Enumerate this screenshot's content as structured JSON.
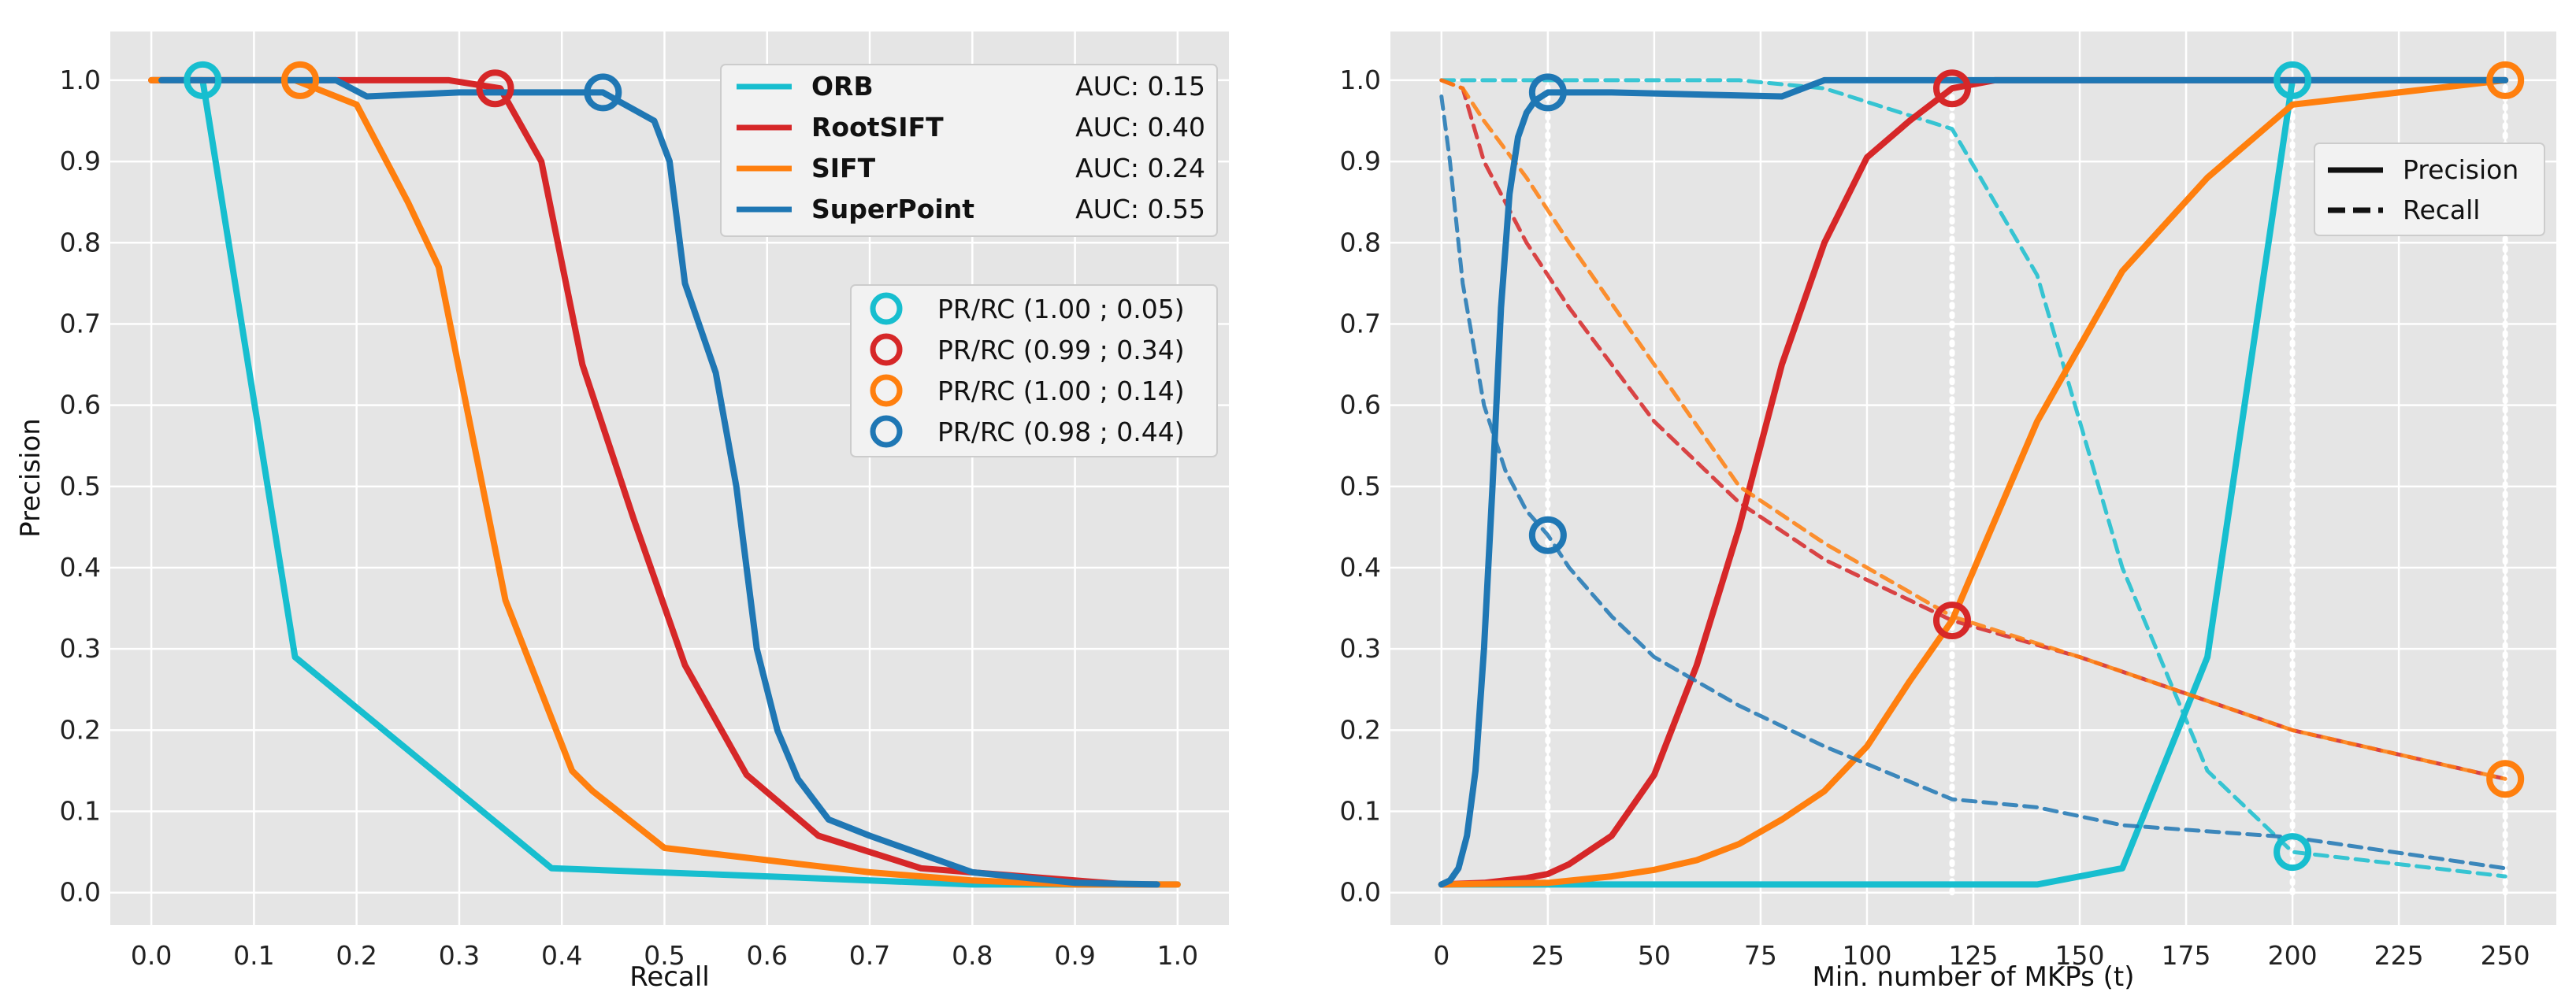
{
  "chart_data": [
    {
      "type": "line",
      "xlabel": "Recall",
      "ylabel": "Precision",
      "xlim": [
        -0.04,
        1.05
      ],
      "ylim": [
        -0.04,
        1.06
      ],
      "xticks": [
        0.0,
        0.1,
        0.2,
        0.3,
        0.4,
        0.5,
        0.6,
        0.7,
        0.8,
        0.9,
        1.0
      ],
      "yticks": [
        0.0,
        0.1,
        0.2,
        0.3,
        0.4,
        0.5,
        0.6,
        0.7,
        0.8,
        0.9,
        1.0
      ],
      "grid": true,
      "series": [
        {
          "name": "ORB",
          "auc_label": "AUC: 0.15",
          "color": "#17becf",
          "x": [
            0.0,
            0.05,
            0.14,
            0.39,
            0.6,
            0.8,
            1.0
          ],
          "y": [
            1.0,
            1.0,
            0.29,
            0.03,
            0.02,
            0.01,
            0.01
          ]
        },
        {
          "name": "RootSIFT",
          "auc_label": "AUC: 0.40",
          "color": "#d62728",
          "x": [
            0.0,
            0.29,
            0.34,
            0.38,
            0.42,
            0.47,
            0.52,
            0.58,
            0.65,
            0.75,
            0.85,
            0.95,
            0.98
          ],
          "y": [
            1.0,
            1.0,
            0.99,
            0.9,
            0.65,
            0.46,
            0.28,
            0.145,
            0.07,
            0.03,
            0.02,
            0.01,
            0.01
          ]
        },
        {
          "name": "SIFT",
          "auc_label": "AUC: 0.24",
          "color": "#ff7f0e",
          "x": [
            0.0,
            0.14,
            0.2,
            0.25,
            0.28,
            0.31,
            0.345,
            0.41,
            0.43,
            0.5,
            0.6,
            0.7,
            0.8,
            0.9,
            1.0
          ],
          "y": [
            1.0,
            1.0,
            0.97,
            0.85,
            0.77,
            0.58,
            0.36,
            0.15,
            0.125,
            0.055,
            0.04,
            0.025,
            0.015,
            0.01,
            0.01
          ]
        },
        {
          "name": "SuperPoint",
          "auc_label": "AUC: 0.55",
          "color": "#1f77b4",
          "x": [
            0.01,
            0.18,
            0.21,
            0.3,
            0.44,
            0.49,
            0.505,
            0.52,
            0.55,
            0.57,
            0.59,
            0.61,
            0.63,
            0.66,
            0.7,
            0.8,
            0.9,
            0.98
          ],
          "y": [
            1.0,
            1.0,
            0.98,
            0.985,
            0.985,
            0.95,
            0.9,
            0.75,
            0.64,
            0.5,
            0.3,
            0.2,
            0.14,
            0.09,
            0.07,
            0.025,
            0.012,
            0.01
          ]
        }
      ],
      "markers": [
        {
          "label": "PR/RC (1.00 ; 0.05)",
          "color": "#17becf",
          "x": 0.05,
          "y": 1.0
        },
        {
          "label": "PR/RC (0.99 ; 0.34)",
          "color": "#d62728",
          "x": 0.335,
          "y": 0.99
        },
        {
          "label": "PR/RC (1.00 ; 0.14)",
          "color": "#ff7f0e",
          "x": 0.145,
          "y": 1.0
        },
        {
          "label": "PR/RC (0.98 ; 0.44)",
          "color": "#1f77b4",
          "x": 0.44,
          "y": 0.985
        }
      ],
      "legend_placement": "top-right"
    },
    {
      "type": "line",
      "xlabel": "Min. number of MKPs (t)",
      "ylabel": "",
      "xlim": [
        -12,
        262
      ],
      "ylim": [
        -0.04,
        1.06
      ],
      "xticks": [
        0,
        25,
        50,
        75,
        100,
        125,
        150,
        175,
        200,
        225,
        250
      ],
      "yticks": [
        0.0,
        0.1,
        0.2,
        0.3,
        0.4,
        0.5,
        0.6,
        0.7,
        0.8,
        0.9,
        1.0
      ],
      "grid": true,
      "style_legend": [
        {
          "label": "Precision",
          "dash": "solid"
        },
        {
          "label": "Recall",
          "dash": "dashed"
        }
      ],
      "series": [
        {
          "name": "ORB precision",
          "color": "#17becf",
          "dash": "solid",
          "x": [
            0,
            100,
            140,
            160,
            180,
            200,
            250
          ],
          "y": [
            0.01,
            0.01,
            0.01,
            0.03,
            0.29,
            1.0,
            1.0
          ]
        },
        {
          "name": "ORB recall",
          "color": "#17becf",
          "dash": "dashed",
          "x": [
            0,
            70,
            90,
            120,
            140,
            160,
            180,
            200,
            250
          ],
          "y": [
            1.0,
            1.0,
            0.99,
            0.94,
            0.76,
            0.4,
            0.15,
            0.05,
            0.02
          ]
        },
        {
          "name": "RootSIFT precision",
          "color": "#d62728",
          "dash": "solid",
          "x": [
            0,
            10,
            20,
            25,
            30,
            40,
            50,
            60,
            70,
            80,
            90,
            100,
            110,
            120,
            130,
            250
          ],
          "y": [
            0.01,
            0.012,
            0.018,
            0.023,
            0.035,
            0.07,
            0.145,
            0.28,
            0.45,
            0.65,
            0.8,
            0.905,
            0.95,
            0.99,
            1.0,
            1.0
          ]
        },
        {
          "name": "RootSIFT recall",
          "color": "#d62728",
          "dash": "dashed",
          "x": [
            0,
            5,
            10,
            20,
            30,
            40,
            50,
            70,
            90,
            120,
            150,
            200,
            250
          ],
          "y": [
            1.0,
            0.99,
            0.9,
            0.8,
            0.72,
            0.65,
            0.58,
            0.48,
            0.41,
            0.335,
            0.29,
            0.2,
            0.14
          ]
        },
        {
          "name": "SIFT precision",
          "color": "#ff7f0e",
          "dash": "solid",
          "x": [
            0,
            25,
            40,
            50,
            60,
            70,
            80,
            90,
            100,
            110,
            120,
            140,
            160,
            180,
            200,
            250
          ],
          "y": [
            0.01,
            0.012,
            0.02,
            0.028,
            0.04,
            0.06,
            0.09,
            0.125,
            0.18,
            0.26,
            0.335,
            0.58,
            0.765,
            0.88,
            0.97,
            1.0
          ]
        },
        {
          "name": "SIFT recall",
          "color": "#ff7f0e",
          "dash": "dashed",
          "x": [
            0,
            5,
            10,
            20,
            30,
            50,
            70,
            90,
            120,
            150,
            200,
            250
          ],
          "y": [
            1.0,
            0.99,
            0.95,
            0.88,
            0.8,
            0.65,
            0.5,
            0.43,
            0.34,
            0.29,
            0.2,
            0.14
          ]
        },
        {
          "name": "SuperPoint precision",
          "color": "#1f77b4",
          "dash": "solid",
          "x": [
            0,
            2,
            4,
            6,
            8,
            10,
            12,
            14,
            16,
            18,
            20,
            22,
            25,
            40,
            80,
            90,
            250
          ],
          "y": [
            0.01,
            0.015,
            0.03,
            0.07,
            0.15,
            0.3,
            0.5,
            0.72,
            0.86,
            0.93,
            0.96,
            0.975,
            0.985,
            0.985,
            0.98,
            1.0,
            1.0
          ]
        },
        {
          "name": "SuperPoint recall",
          "color": "#1f77b4",
          "dash": "dashed",
          "x": [
            0,
            2,
            5,
            10,
            15,
            20,
            25,
            30,
            40,
            50,
            70,
            90,
            120,
            140,
            160,
            200,
            250
          ],
          "y": [
            0.98,
            0.9,
            0.75,
            0.6,
            0.52,
            0.47,
            0.44,
            0.4,
            0.34,
            0.29,
            0.23,
            0.18,
            0.115,
            0.105,
            0.083,
            0.068,
            0.03
          ]
        }
      ],
      "markers": [
        {
          "color": "#1f77b4",
          "x": 25,
          "y": 0.985
        },
        {
          "color": "#1f77b4",
          "x": 25,
          "y": 0.44
        },
        {
          "color": "#d62728",
          "x": 120,
          "y": 0.99
        },
        {
          "color": "#d62728",
          "x": 120,
          "y": 0.335
        },
        {
          "color": "#17becf",
          "x": 200,
          "y": 1.0
        },
        {
          "color": "#17becf",
          "x": 200,
          "y": 0.05
        },
        {
          "color": "#ff7f0e",
          "x": 250,
          "y": 1.0
        },
        {
          "color": "#ff7f0e",
          "x": 250,
          "y": 0.14
        }
      ],
      "vlines": [
        25,
        120,
        200,
        250
      ],
      "legend_placement": "right"
    }
  ]
}
